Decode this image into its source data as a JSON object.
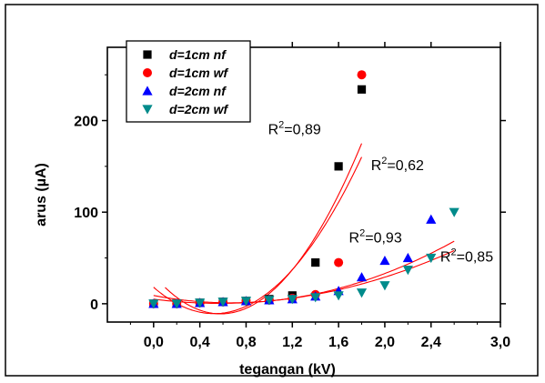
{
  "chart_data": {
    "type": "scatter",
    "xlabel": "tegangan (kV)",
    "ylabel": "arus (µA)",
    "xlim": [
      -0.4,
      3.0
    ],
    "ylim": [
      -20,
      280
    ],
    "x_ticks": [
      "0,0",
      "0,4",
      "0,8",
      "1,2",
      "1,6",
      "2,0",
      "2,4",
      "3,0"
    ],
    "x_tick_values": [
      0.0,
      0.4,
      0.8,
      1.2,
      1.6,
      2.0,
      2.4,
      3.0
    ],
    "y_ticks": [
      "0",
      "100",
      "200"
    ],
    "y_tick_values": [
      0,
      100,
      200
    ],
    "legend_position": "top-left",
    "series": [
      {
        "name": "d=1cm nf",
        "marker": "square",
        "color": "#000000",
        "x": [
          0.0,
          0.2,
          0.4,
          0.6,
          0.8,
          1.0,
          1.2,
          1.4,
          1.6,
          1.8
        ],
        "y": [
          0,
          0,
          1,
          2,
          3,
          5,
          9,
          45,
          150,
          234
        ]
      },
      {
        "name": "d=1cm wf",
        "marker": "circle",
        "color": "#ff0000",
        "x": [
          0.0,
          0.2,
          0.4,
          0.6,
          0.8,
          1.0,
          1.2,
          1.4,
          1.6,
          1.8
        ],
        "y": [
          0,
          0,
          1,
          2,
          3,
          4,
          6,
          10,
          45,
          250
        ]
      },
      {
        "name": "d=2cm nf",
        "marker": "triangle-up",
        "color": "#0000ff",
        "x": [
          0.0,
          0.2,
          0.4,
          0.6,
          0.8,
          1.0,
          1.2,
          1.4,
          1.6,
          1.8,
          2.0,
          2.2,
          2.4
        ],
        "y": [
          0,
          0,
          1,
          2,
          3,
          4,
          5,
          8,
          14,
          29,
          47,
          50,
          92
        ]
      },
      {
        "name": "d=2cm wf",
        "marker": "triangle-down",
        "color": "#008b8b",
        "x": [
          0.0,
          0.2,
          0.4,
          0.6,
          0.8,
          1.0,
          1.2,
          1.4,
          1.6,
          1.8,
          2.0,
          2.2,
          2.4,
          2.6
        ],
        "y": [
          0,
          0,
          1,
          2,
          3,
          4,
          5,
          7,
          9,
          12,
          20,
          37,
          50,
          100
        ]
      }
    ],
    "fit_curves": {
      "color": "#ff0000",
      "curves": [
        {
          "x_range": [
            0.1,
            1.8
          ],
          "coef": [
            31,
            -145,
            125
          ]
        },
        {
          "x_range": [
            0.0,
            1.8
          ],
          "coef": [
            18,
            -110,
            105
          ]
        },
        {
          "x_range": [
            0.0,
            2.6
          ],
          "coef": [
            9,
            -24,
            18
          ]
        },
        {
          "x_range": [
            0.0,
            2.6
          ],
          "coef": [
            5,
            -16,
            14
          ]
        }
      ]
    },
    "annotations": [
      {
        "text": "R",
        "sup": "2",
        "value": "=0,89",
        "x": 0.99,
        "y": 185
      },
      {
        "text": "R",
        "sup": "2",
        "value": "=0,62",
        "x": 1.88,
        "y": 146
      },
      {
        "text": "R",
        "sup": "2",
        "value": "=0,93",
        "x": 1.69,
        "y": 67
      },
      {
        "text": "R",
        "sup": "2",
        "value": "=0,85",
        "x": 2.48,
        "y": 46
      }
    ]
  }
}
